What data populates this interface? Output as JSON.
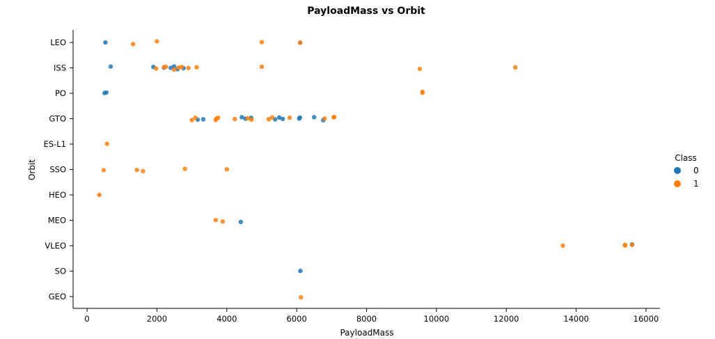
{
  "chart_data": {
    "type": "scatter",
    "title": "PayloadMass vs Orbit",
    "xlabel": "PayloadMass",
    "ylabel": "Orbit",
    "xlim": [
      -400,
      16400
    ],
    "xticks": [
      0,
      2000,
      4000,
      6000,
      8000,
      10000,
      12000,
      14000,
      16000
    ],
    "categories": [
      "LEO",
      "ISS",
      "PO",
      "GTO",
      "ES-L1",
      "SSO",
      "HEO",
      "MEO",
      "VLEO",
      "SO",
      "GEO"
    ],
    "grid": false,
    "legend": {
      "title": "Class",
      "placement": "right"
    },
    "colors": {
      "0": "#1f77b4",
      "1": "#ff7f0e"
    },
    "series": [
      {
        "name": "0",
        "color": "#1f77b4",
        "points": [
          {
            "x": 525,
            "y": "LEO"
          },
          {
            "x": 6100,
            "y": "LEO"
          },
          {
            "x": 677,
            "y": "ISS"
          },
          {
            "x": 1898,
            "y": "ISS"
          },
          {
            "x": 2200,
            "y": "ISS"
          },
          {
            "x": 2395,
            "y": "ISS"
          },
          {
            "x": 2490,
            "y": "ISS"
          },
          {
            "x": 2590,
            "y": "ISS"
          },
          {
            "x": 2760,
            "y": "ISS"
          },
          {
            "x": 500,
            "y": "PO"
          },
          {
            "x": 553,
            "y": "PO"
          },
          {
            "x": 3170,
            "y": "GTO"
          },
          {
            "x": 3325,
            "y": "GTO"
          },
          {
            "x": 4428,
            "y": "GTO"
          },
          {
            "x": 4535,
            "y": "GTO"
          },
          {
            "x": 4696,
            "y": "GTO"
          },
          {
            "x": 5383,
            "y": "GTO"
          },
          {
            "x": 5500,
            "y": "GTO"
          },
          {
            "x": 5600,
            "y": "GTO"
          },
          {
            "x": 6070,
            "y": "GTO"
          },
          {
            "x": 6092,
            "y": "GTO"
          },
          {
            "x": 6500,
            "y": "GTO"
          },
          {
            "x": 6761,
            "y": "GTO"
          },
          {
            "x": 4400,
            "y": "MEO"
          },
          {
            "x": 15600,
            "y": "VLEO"
          },
          {
            "x": 6104,
            "y": "SO"
          }
        ]
      },
      {
        "name": "1",
        "color": "#ff7f0e",
        "points": [
          {
            "x": 1316,
            "y": "LEO"
          },
          {
            "x": 2000,
            "y": "LEO"
          },
          {
            "x": 5000,
            "y": "LEO"
          },
          {
            "x": 6100,
            "y": "LEO"
          },
          {
            "x": 1977,
            "y": "ISS"
          },
          {
            "x": 2205,
            "y": "ISS"
          },
          {
            "x": 2257,
            "y": "ISS"
          },
          {
            "x": 2490,
            "y": "ISS"
          },
          {
            "x": 2617,
            "y": "ISS"
          },
          {
            "x": 2708,
            "y": "ISS"
          },
          {
            "x": 2900,
            "y": "ISS"
          },
          {
            "x": 3136,
            "y": "ISS"
          },
          {
            "x": 5000,
            "y": "ISS"
          },
          {
            "x": 9525,
            "y": "ISS"
          },
          {
            "x": 12259,
            "y": "ISS"
          },
          {
            "x": 9600,
            "y": "PO"
          },
          {
            "x": 9600,
            "y": "PO"
          },
          {
            "x": 3000,
            "y": "GTO"
          },
          {
            "x": 3100,
            "y": "GTO"
          },
          {
            "x": 3681,
            "y": "GTO"
          },
          {
            "x": 3700,
            "y": "GTO"
          },
          {
            "x": 3750,
            "y": "GTO"
          },
          {
            "x": 4230,
            "y": "GTO"
          },
          {
            "x": 4600,
            "y": "GTO"
          },
          {
            "x": 4707,
            "y": "GTO"
          },
          {
            "x": 5200,
            "y": "GTO"
          },
          {
            "x": 5300,
            "y": "GTO"
          },
          {
            "x": 5800,
            "y": "GTO"
          },
          {
            "x": 6800,
            "y": "GTO"
          },
          {
            "x": 7060,
            "y": "GTO"
          },
          {
            "x": 7076,
            "y": "GTO"
          },
          {
            "x": 570,
            "y": "ES-L1"
          },
          {
            "x": 475,
            "y": "SSO"
          },
          {
            "x": 1425,
            "y": "SSO"
          },
          {
            "x": 1600,
            "y": "SSO"
          },
          {
            "x": 2800,
            "y": "SSO"
          },
          {
            "x": 4000,
            "y": "SSO"
          },
          {
            "x": 350,
            "y": "HEO"
          },
          {
            "x": 3681,
            "y": "MEO"
          },
          {
            "x": 3880,
            "y": "MEO"
          },
          {
            "x": 13620,
            "y": "VLEO"
          },
          {
            "x": 15400,
            "y": "VLEO"
          },
          {
            "x": 15400,
            "y": "VLEO"
          },
          {
            "x": 15600,
            "y": "VLEO"
          },
          {
            "x": 6123,
            "y": "GEO"
          }
        ]
      }
    ]
  }
}
